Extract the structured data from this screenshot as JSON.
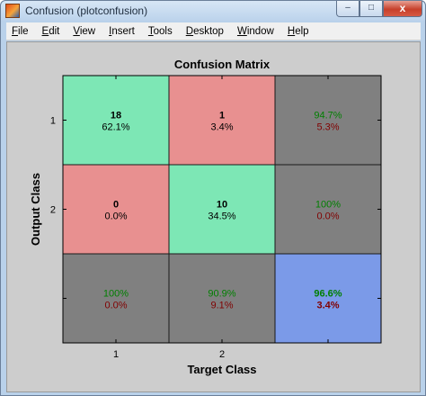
{
  "window": {
    "title": "Confusion (plotconfusion)",
    "icon": "matlab-figure-icon",
    "controls": {
      "minimize": "–",
      "maximize": "□",
      "close": "x"
    }
  },
  "menubar": {
    "items": [
      {
        "label": "File",
        "u": "F",
        "rest": "ile"
      },
      {
        "label": "Edit",
        "u": "E",
        "rest": "dit"
      },
      {
        "label": "View",
        "u": "V",
        "rest": "iew"
      },
      {
        "label": "Insert",
        "u": "I",
        "rest": "nsert"
      },
      {
        "label": "Tools",
        "u": "T",
        "rest": "ools"
      },
      {
        "label": "Desktop",
        "u": "D",
        "rest": "esktop"
      },
      {
        "label": "Window",
        "u": "W",
        "rest": "indow"
      },
      {
        "label": "Help",
        "u": "H",
        "rest": "elp"
      }
    ]
  },
  "chart_data": {
    "type": "heatmap",
    "title": "Confusion Matrix",
    "xlabel": "Target Class",
    "ylabel": "Output Class",
    "x_ticks": [
      "1",
      "2"
    ],
    "y_ticks": [
      "1",
      "2"
    ],
    "colors": {
      "correct": "#7de7b5",
      "incorrect": "#e89090",
      "summary": "#808080",
      "overall": "#7b9ae8",
      "green_text": "#007f00",
      "red_text": "#800000"
    },
    "cells": [
      [
        {
          "kind": "correct",
          "line1": "18",
          "line2": "62.1%"
        },
        {
          "kind": "incorrect",
          "line1": "1",
          "line2": "3.4%"
        },
        {
          "kind": "summary",
          "line1": "94.7%",
          "line2": "5.3%"
        }
      ],
      [
        {
          "kind": "incorrect",
          "line1": "0",
          "line2": "0.0%"
        },
        {
          "kind": "correct",
          "line1": "10",
          "line2": "34.5%"
        },
        {
          "kind": "summary",
          "line1": "100%",
          "line2": "0.0%"
        }
      ],
      [
        {
          "kind": "summary",
          "line1": "100%",
          "line2": "0.0%"
        },
        {
          "kind": "summary",
          "line1": "90.9%",
          "line2": "9.1%"
        },
        {
          "kind": "overall",
          "line1": "96.6%",
          "line2": "3.4%"
        }
      ]
    ]
  }
}
